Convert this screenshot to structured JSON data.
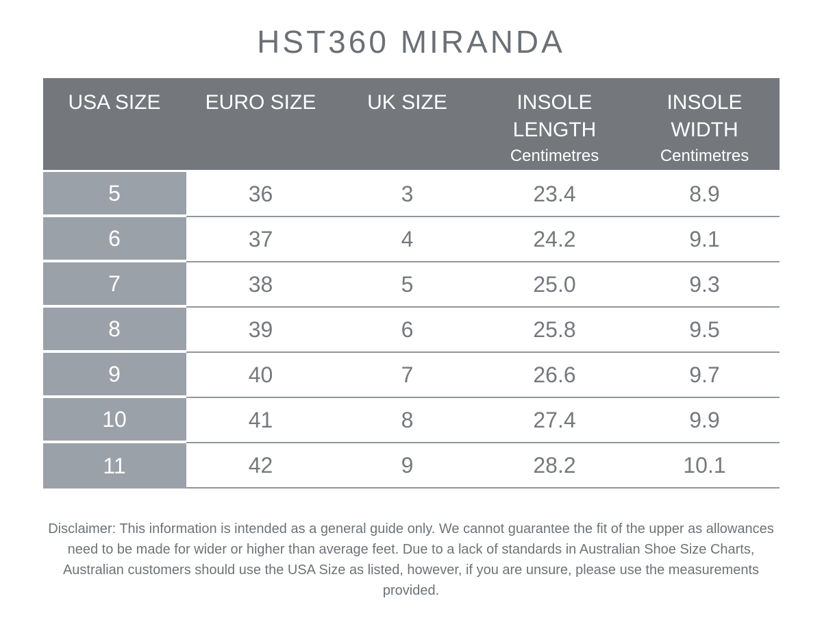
{
  "title": "HST360 MIRANDA",
  "colors": {
    "header_bg": "#74777c",
    "first_column_bg": "#9aa1a8",
    "row_line": "#90969c",
    "body_text": "#75787d",
    "title_text": "#6c7076"
  },
  "table": {
    "columns": [
      {
        "label": "USA SIZE",
        "sub": ""
      },
      {
        "label": "EURO SIZE",
        "sub": ""
      },
      {
        "label": "UK SIZE",
        "sub": ""
      },
      {
        "label": "INSOLE LENGTH",
        "sub": "Centimetres"
      },
      {
        "label": "INSOLE WIDTH",
        "sub": "Centimetres"
      }
    ],
    "rows": [
      [
        "5",
        "36",
        "3",
        "23.4",
        "8.9"
      ],
      [
        "6",
        "37",
        "4",
        "24.2",
        "9.1"
      ],
      [
        "7",
        "38",
        "5",
        "25.0",
        "9.3"
      ],
      [
        "8",
        "39",
        "6",
        "25.8",
        "9.5"
      ],
      [
        "9",
        "40",
        "7",
        "26.6",
        "9.7"
      ],
      [
        "10",
        "41",
        "8",
        "27.4",
        "9.9"
      ],
      [
        "11",
        "42",
        "9",
        "28.2",
        "10.1"
      ]
    ]
  },
  "chart_data": {
    "type": "table",
    "title": "HST360 MIRANDA",
    "columns": [
      "USA SIZE",
      "EURO SIZE",
      "UK SIZE",
      "INSOLE LENGTH (Centimetres)",
      "INSOLE WIDTH (Centimetres)"
    ],
    "rows": [
      [
        5,
        36,
        3,
        23.4,
        8.9
      ],
      [
        6,
        37,
        4,
        24.2,
        9.1
      ],
      [
        7,
        38,
        5,
        25.0,
        9.3
      ],
      [
        8,
        39,
        6,
        25.8,
        9.5
      ],
      [
        9,
        40,
        7,
        26.6,
        9.7
      ],
      [
        10,
        41,
        8,
        27.4,
        9.9
      ],
      [
        11,
        42,
        9,
        28.2,
        10.1
      ]
    ]
  },
  "disclaimer": "Disclaimer: This information is intended as a general guide only. We cannot guarantee the fit of the upper as allowances need to be made for wider or higher than average feet. Due to a lack of standards in Australian Shoe Size Charts, Australian customers should use the USA Size as listed, however, if you are unsure, please use the measurements provided."
}
